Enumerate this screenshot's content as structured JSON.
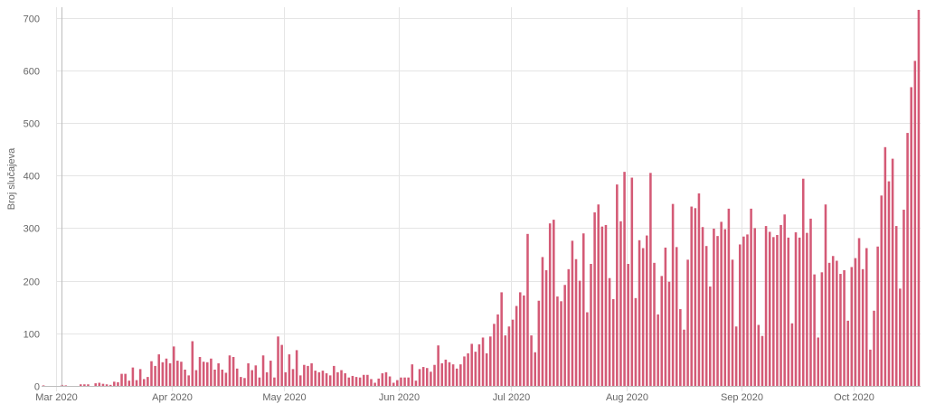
{
  "chart_data": {
    "type": "bar",
    "title": "",
    "xlabel": "",
    "ylabel": "Broj slučajeva",
    "ylim": [
      0,
      720
    ],
    "y_ticks": [
      0,
      100,
      200,
      300,
      400,
      500,
      600,
      700
    ],
    "x_start_date": "2020-02-26",
    "x_end_date": "2020-10-18",
    "x_ticks": [
      {
        "label": "Mar 2020",
        "date": "2020-03-01"
      },
      {
        "label": "Apr 2020",
        "date": "2020-04-01"
      },
      {
        "label": "May 2020",
        "date": "2020-05-01"
      },
      {
        "label": "Jun 2020",
        "date": "2020-06-01"
      },
      {
        "label": "Jul 2020",
        "date": "2020-07-01"
      },
      {
        "label": "Aug 2020",
        "date": "2020-08-01"
      },
      {
        "label": "Sep 2020",
        "date": "2020-09-01"
      },
      {
        "label": "Oct 2020",
        "date": "2020-10-01"
      }
    ],
    "grid": true,
    "bar_color": "#d45a76",
    "grid_color": "#e5e5e5",
    "axis_color": "#bdbdbd",
    "values": [
      1,
      0,
      0,
      0,
      0,
      2,
      1,
      0,
      0,
      0,
      3,
      3,
      3,
      0,
      5,
      6,
      4,
      3,
      2,
      8,
      7,
      23,
      23,
      10,
      35,
      11,
      32,
      13,
      17,
      47,
      38,
      60,
      45,
      52,
      43,
      75,
      48,
      46,
      31,
      20,
      85,
      30,
      55,
      46,
      45,
      52,
      31,
      43,
      31,
      25,
      58,
      55,
      33,
      17,
      15,
      43,
      30,
      39,
      16,
      58,
      26,
      48,
      16,
      94,
      78,
      26,
      60,
      32,
      68,
      20,
      40,
      38,
      43,
      29,
      26,
      29,
      24,
      20,
      38,
      26,
      30,
      24,
      16,
      19,
      17,
      16,
      21,
      21,
      13,
      6,
      14,
      24,
      26,
      18,
      6,
      11,
      16,
      16,
      16,
      41,
      10,
      32,
      36,
      34,
      27,
      40,
      77,
      43,
      50,
      45,
      41,
      33,
      41,
      56,
      62,
      80,
      65,
      79,
      92,
      62,
      94,
      118,
      136,
      178,
      96,
      113,
      126,
      152,
      178,
      172,
      289,
      96,
      64,
      162,
      245,
      220,
      309,
      316,
      170,
      161,
      192,
      222,
      276,
      241,
      200,
      290,
      140,
      232,
      330,
      345,
      303,
      306,
      205,
      165,
      383,
      313,
      407,
      232,
      396,
      167,
      277,
      262,
      286,
      405,
      234,
      136,
      209,
      263,
      198,
      346,
      264,
      146,
      107,
      240,
      341,
      338,
      366,
      302,
      266,
      189,
      299,
      285,
      312,
      298,
      337,
      240,
      113,
      269,
      284,
      288,
      337,
      300,
      116,
      95,
      304,
      293,
      283,
      287,
      306,
      326,
      282,
      119,
      292,
      282,
      394,
      291,
      318,
      212,
      92,
      216,
      345,
      234,
      247,
      238,
      213,
      220,
      124,
      226,
      243,
      281,
      222,
      262,
      69,
      143,
      265,
      362,
      454,
      389,
      432,
      304,
      185,
      335,
      481,
      568,
      618,
      715
    ]
  }
}
